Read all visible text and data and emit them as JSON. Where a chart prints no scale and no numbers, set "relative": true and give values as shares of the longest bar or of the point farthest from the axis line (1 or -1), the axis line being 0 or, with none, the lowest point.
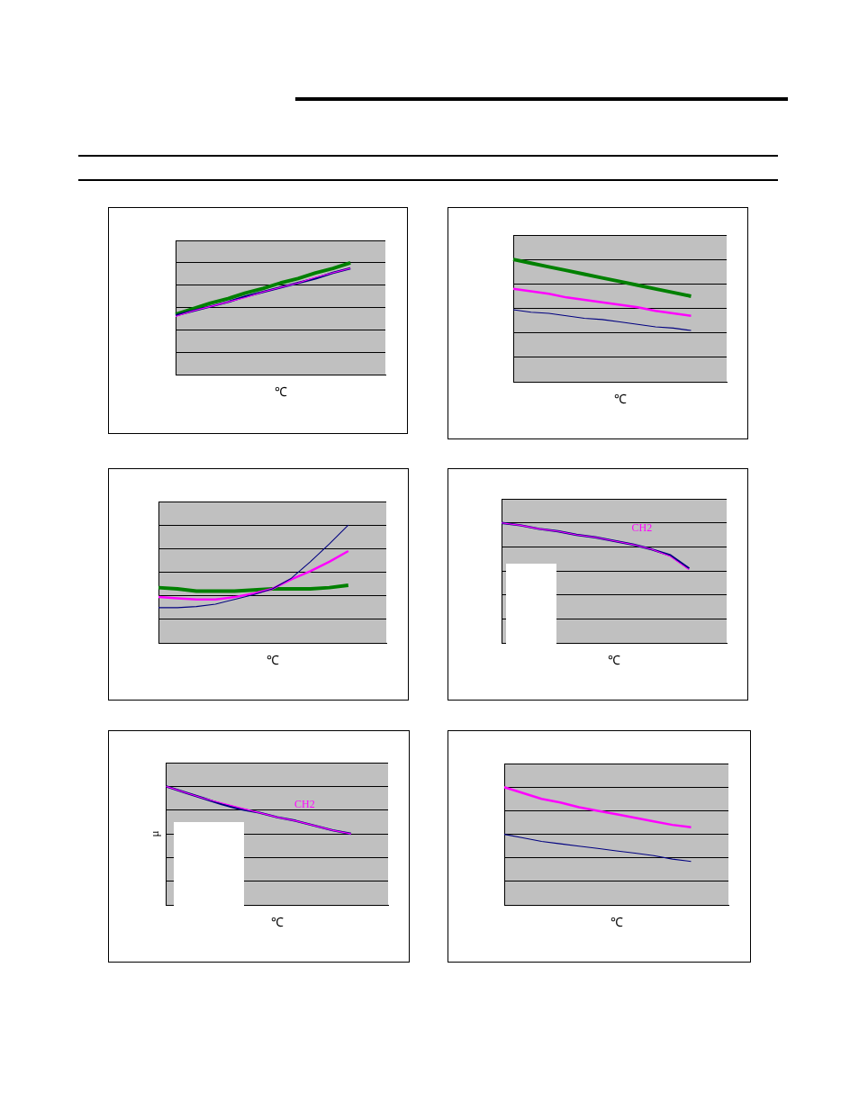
{
  "chart_data": [
    {
      "type": "line",
      "relative": true,
      "xlabel": "℃",
      "grid": "y",
      "legend": false,
      "categories": [
        null,
        null,
        null,
        null,
        null,
        null,
        null,
        null,
        null,
        null,
        null,
        null,
        null
      ],
      "series": [
        {
          "color": "#008000",
          "values": [
            0.54,
            0.59,
            0.64,
            0.68,
            0.73,
            0.77,
            0.82,
            0.86,
            0.91,
            0.95,
            1.0,
            null,
            null
          ]
        },
        {
          "color": "#000080",
          "values": [
            0.53,
            0.57,
            0.61,
            0.65,
            0.7,
            0.74,
            0.78,
            0.82,
            0.86,
            0.91,
            0.95,
            null,
            null
          ]
        },
        {
          "color": "#ff00ff",
          "values": [
            0.52,
            0.57,
            0.61,
            0.65,
            0.69,
            0.74,
            0.78,
            0.82,
            0.87,
            0.91,
            0.95,
            null,
            null
          ]
        }
      ]
    },
    {
      "type": "line",
      "relative": true,
      "xlabel": "℃",
      "grid": "y",
      "legend": false,
      "categories": [
        null,
        null,
        null,
        null,
        null,
        null,
        null,
        null,
        null,
        null,
        null,
        null,
        null
      ],
      "series": [
        {
          "color": "#008000",
          "values": [
            1.0,
            0.97,
            0.94,
            0.91,
            0.88,
            0.85,
            0.82,
            0.79,
            0.76,
            0.73,
            0.7,
            null,
            null
          ]
        },
        {
          "color": "#ff00ff",
          "values": [
            0.76,
            0.74,
            0.72,
            0.69,
            0.67,
            0.65,
            0.63,
            0.61,
            0.58,
            0.56,
            0.54,
            null,
            null
          ]
        },
        {
          "color": "#000080",
          "values": [
            0.59,
            0.57,
            0.56,
            0.54,
            0.52,
            0.51,
            0.49,
            0.47,
            0.45,
            0.44,
            0.42,
            null,
            null
          ]
        }
      ]
    },
    {
      "type": "line",
      "relative": true,
      "xlabel": "℃",
      "grid": "y",
      "legend": false,
      "categories": [
        null,
        null,
        null,
        null,
        null,
        null,
        null,
        null,
        null,
        null,
        null,
        null,
        null
      ],
      "series": [
        {
          "color": "#008000",
          "values": [
            0.47,
            0.46,
            0.44,
            0.44,
            0.44,
            0.45,
            0.46,
            0.46,
            0.46,
            0.47,
            0.49,
            null,
            null
          ]
        },
        {
          "color": "#ff00ff",
          "values": [
            0.39,
            0.38,
            0.37,
            0.37,
            0.39,
            0.42,
            0.46,
            0.54,
            0.61,
            0.69,
            0.78,
            null,
            null
          ]
        },
        {
          "color": "#000080",
          "values": [
            0.3,
            0.3,
            0.31,
            0.33,
            0.37,
            0.41,
            0.46,
            0.55,
            0.69,
            0.84,
            1.0,
            null,
            null
          ]
        }
      ]
    },
    {
      "type": "line",
      "relative": true,
      "xlabel": "℃",
      "grid": "y",
      "legend": false,
      "categories": [
        null,
        null,
        null,
        null,
        null,
        null,
        null,
        null,
        null,
        null,
        null,
        null,
        null
      ],
      "series": [
        {
          "color": "#000080",
          "values": [
            1.0,
            0.98,
            0.95,
            0.93,
            0.9,
            0.88,
            0.85,
            0.82,
            0.78,
            0.73,
            0.62,
            null,
            null
          ]
        },
        {
          "name": "CH2",
          "color": "#ff00ff",
          "values": [
            1.0,
            0.98,
            0.95,
            0.93,
            0.9,
            0.88,
            0.85,
            0.82,
            0.78,
            0.72,
            0.61,
            null,
            null
          ]
        }
      ]
    },
    {
      "type": "line",
      "relative": true,
      "xlabel": "℃",
      "ylabel": "μ",
      "grid": "y",
      "legend": false,
      "categories": [
        null,
        null,
        null,
        null,
        null,
        null,
        null,
        null,
        null,
        null,
        null,
        null,
        null
      ],
      "series": [
        {
          "color": "#000080",
          "values": [
            1.0,
            0.95,
            0.9,
            0.85,
            0.81,
            0.78,
            0.74,
            0.71,
            0.67,
            0.63,
            0.6,
            null,
            null
          ]
        },
        {
          "name": "CH2",
          "color": "#ff00ff",
          "values": [
            1.0,
            0.95,
            0.9,
            0.86,
            0.82,
            0.78,
            0.74,
            0.71,
            0.67,
            0.63,
            0.6,
            null,
            null
          ]
        }
      ]
    },
    {
      "type": "line",
      "relative": true,
      "xlabel": "℃",
      "grid": "y",
      "legend": false,
      "categories": [
        null,
        null,
        null,
        null,
        null,
        null,
        null,
        null,
        null,
        null,
        null,
        null,
        null
      ],
      "series": [
        {
          "color": "#ff00ff",
          "values": [
            1.0,
            0.95,
            0.9,
            0.87,
            0.83,
            0.8,
            0.77,
            0.74,
            0.71,
            0.68,
            0.66,
            null,
            null
          ]
        },
        {
          "color": "#000080",
          "values": [
            0.6,
            0.57,
            0.54,
            0.52,
            0.5,
            0.48,
            0.46,
            0.44,
            0.42,
            0.39,
            0.37,
            null,
            null
          ]
        }
      ]
    }
  ]
}
